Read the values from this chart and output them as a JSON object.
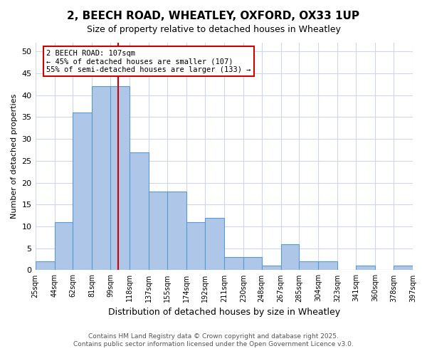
{
  "title_line1": "2, BEECH ROAD, WHEATLEY, OXFORD, OX33 1UP",
  "title_line2": "Size of property relative to detached houses in Wheatley",
  "xlabel": "Distribution of detached houses by size in Wheatley",
  "ylabel": "Number of detached properties",
  "bin_labels": [
    "25sqm",
    "44sqm",
    "62sqm",
    "81sqm",
    "99sqm",
    "118sqm",
    "137sqm",
    "155sqm",
    "174sqm",
    "192sqm",
    "211sqm",
    "230sqm",
    "248sqm",
    "267sqm",
    "285sqm",
    "304sqm",
    "323sqm",
    "341sqm",
    "360sqm",
    "378sqm",
    "397sqm"
  ],
  "bar_values": [
    2,
    11,
    36,
    42,
    42,
    27,
    18,
    18,
    11,
    12,
    3,
    3,
    1,
    6,
    2,
    2,
    0,
    1,
    0,
    1
  ],
  "bin_edges_approx": [
    25,
    44,
    62,
    81,
    99,
    118,
    137,
    155,
    174,
    192,
    211,
    230,
    248,
    267,
    285,
    304,
    323,
    341,
    360,
    378,
    397
  ],
  "bar_color": "#aec6e8",
  "bar_edge_color": "#5b9bd5",
  "vline_x": 107,
  "vline_color": "#cc0000",
  "annotation_text": "2 BEECH ROAD: 107sqm\n← 45% of detached houses are smaller (107)\n55% of semi-detached houses are larger (133) →",
  "annotation_box_color": "#ffffff",
  "annotation_box_edge": "#cc0000",
  "ylim": [
    0,
    52
  ],
  "yticks": [
    0,
    5,
    10,
    15,
    20,
    25,
    30,
    35,
    40,
    45,
    50
  ],
  "footer_line1": "Contains HM Land Registry data © Crown copyright and database right 2025.",
  "footer_line2": "Contains public sector information licensed under the Open Government Licence v3.0.",
  "background_color": "#ffffff",
  "grid_color": "#d0d8e8"
}
